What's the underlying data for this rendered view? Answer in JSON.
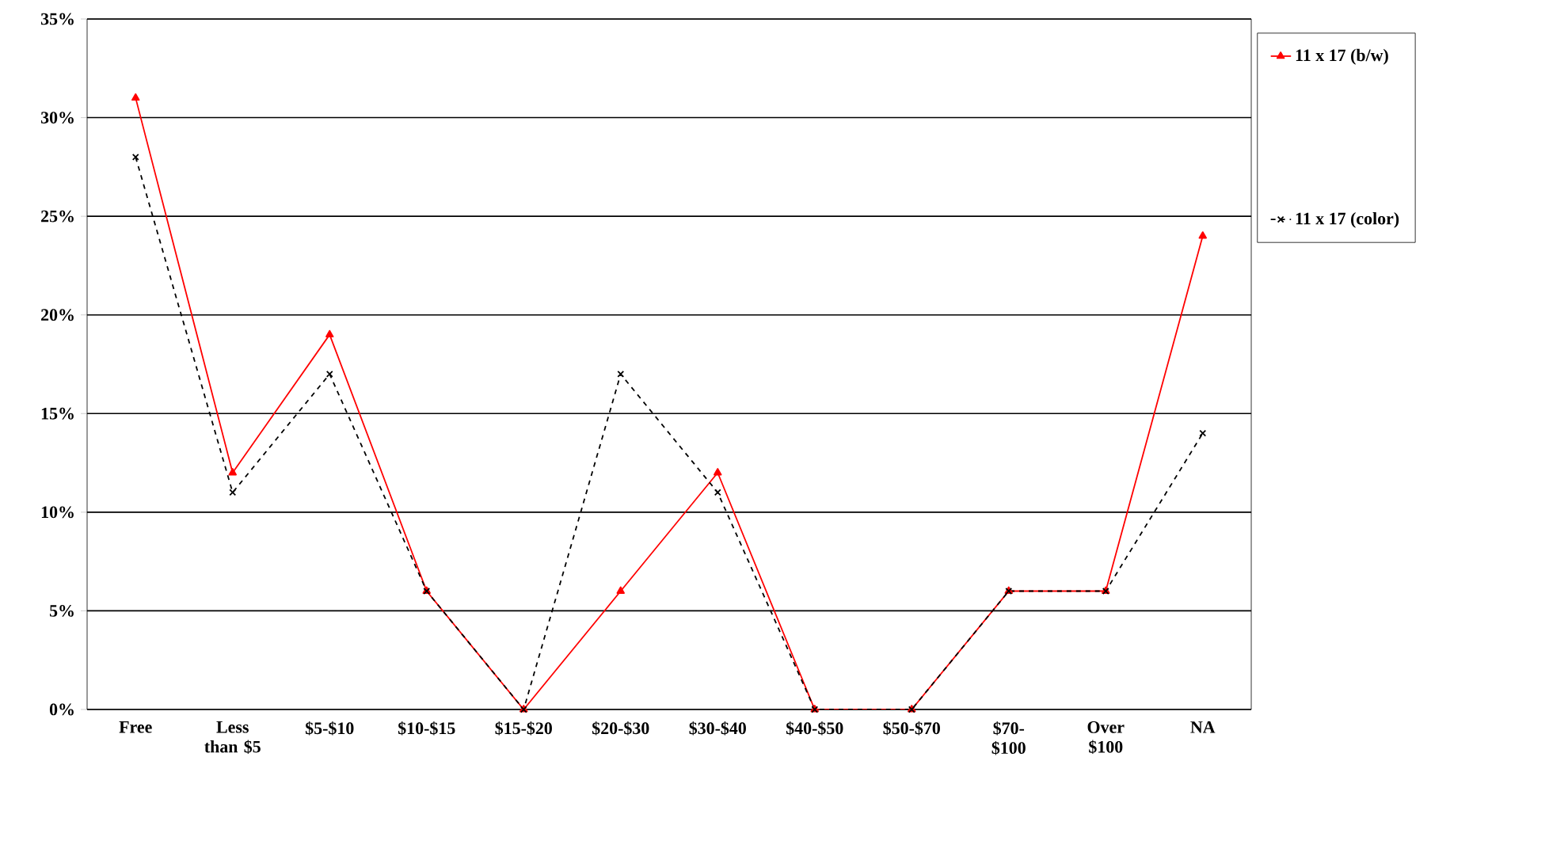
{
  "chart_data": {
    "type": "line",
    "categories": [
      "Free",
      "Less than $5",
      "$5-$10",
      "$10-$15",
      "$15-$20",
      "$20-$30",
      "$30-$40",
      "$40-$50",
      "$50-$70",
      "$70-$100",
      "Over $100",
      "NA"
    ],
    "series": [
      {
        "name": "11 x 17 (b/w)",
        "color": "#ff0000",
        "values": [
          31,
          12,
          19,
          6,
          0,
          6,
          12,
          0,
          0,
          6,
          6,
          24
        ],
        "marker": "triangle",
        "line_style": "solid"
      },
      {
        "name": "11 x 17 (color)",
        "color": "#000000",
        "values": [
          28,
          11,
          17,
          6,
          0,
          17,
          11,
          0,
          0,
          6,
          6,
          14
        ],
        "marker": "cross",
        "line_style": "dashed"
      }
    ],
    "ylim": [
      0,
      35
    ],
    "yticks": [
      {
        "value": 0,
        "label": "0%"
      },
      {
        "value": 5,
        "label": "5%"
      },
      {
        "value": 10,
        "label": "10%"
      },
      {
        "value": 15,
        "label": "15%"
      },
      {
        "value": 20,
        "label": "20%"
      },
      {
        "value": 25,
        "label": "25%"
      },
      {
        "value": 30,
        "label": "30%"
      },
      {
        "value": 35,
        "label": "35%"
      }
    ],
    "grid": "y",
    "legend": "right"
  }
}
